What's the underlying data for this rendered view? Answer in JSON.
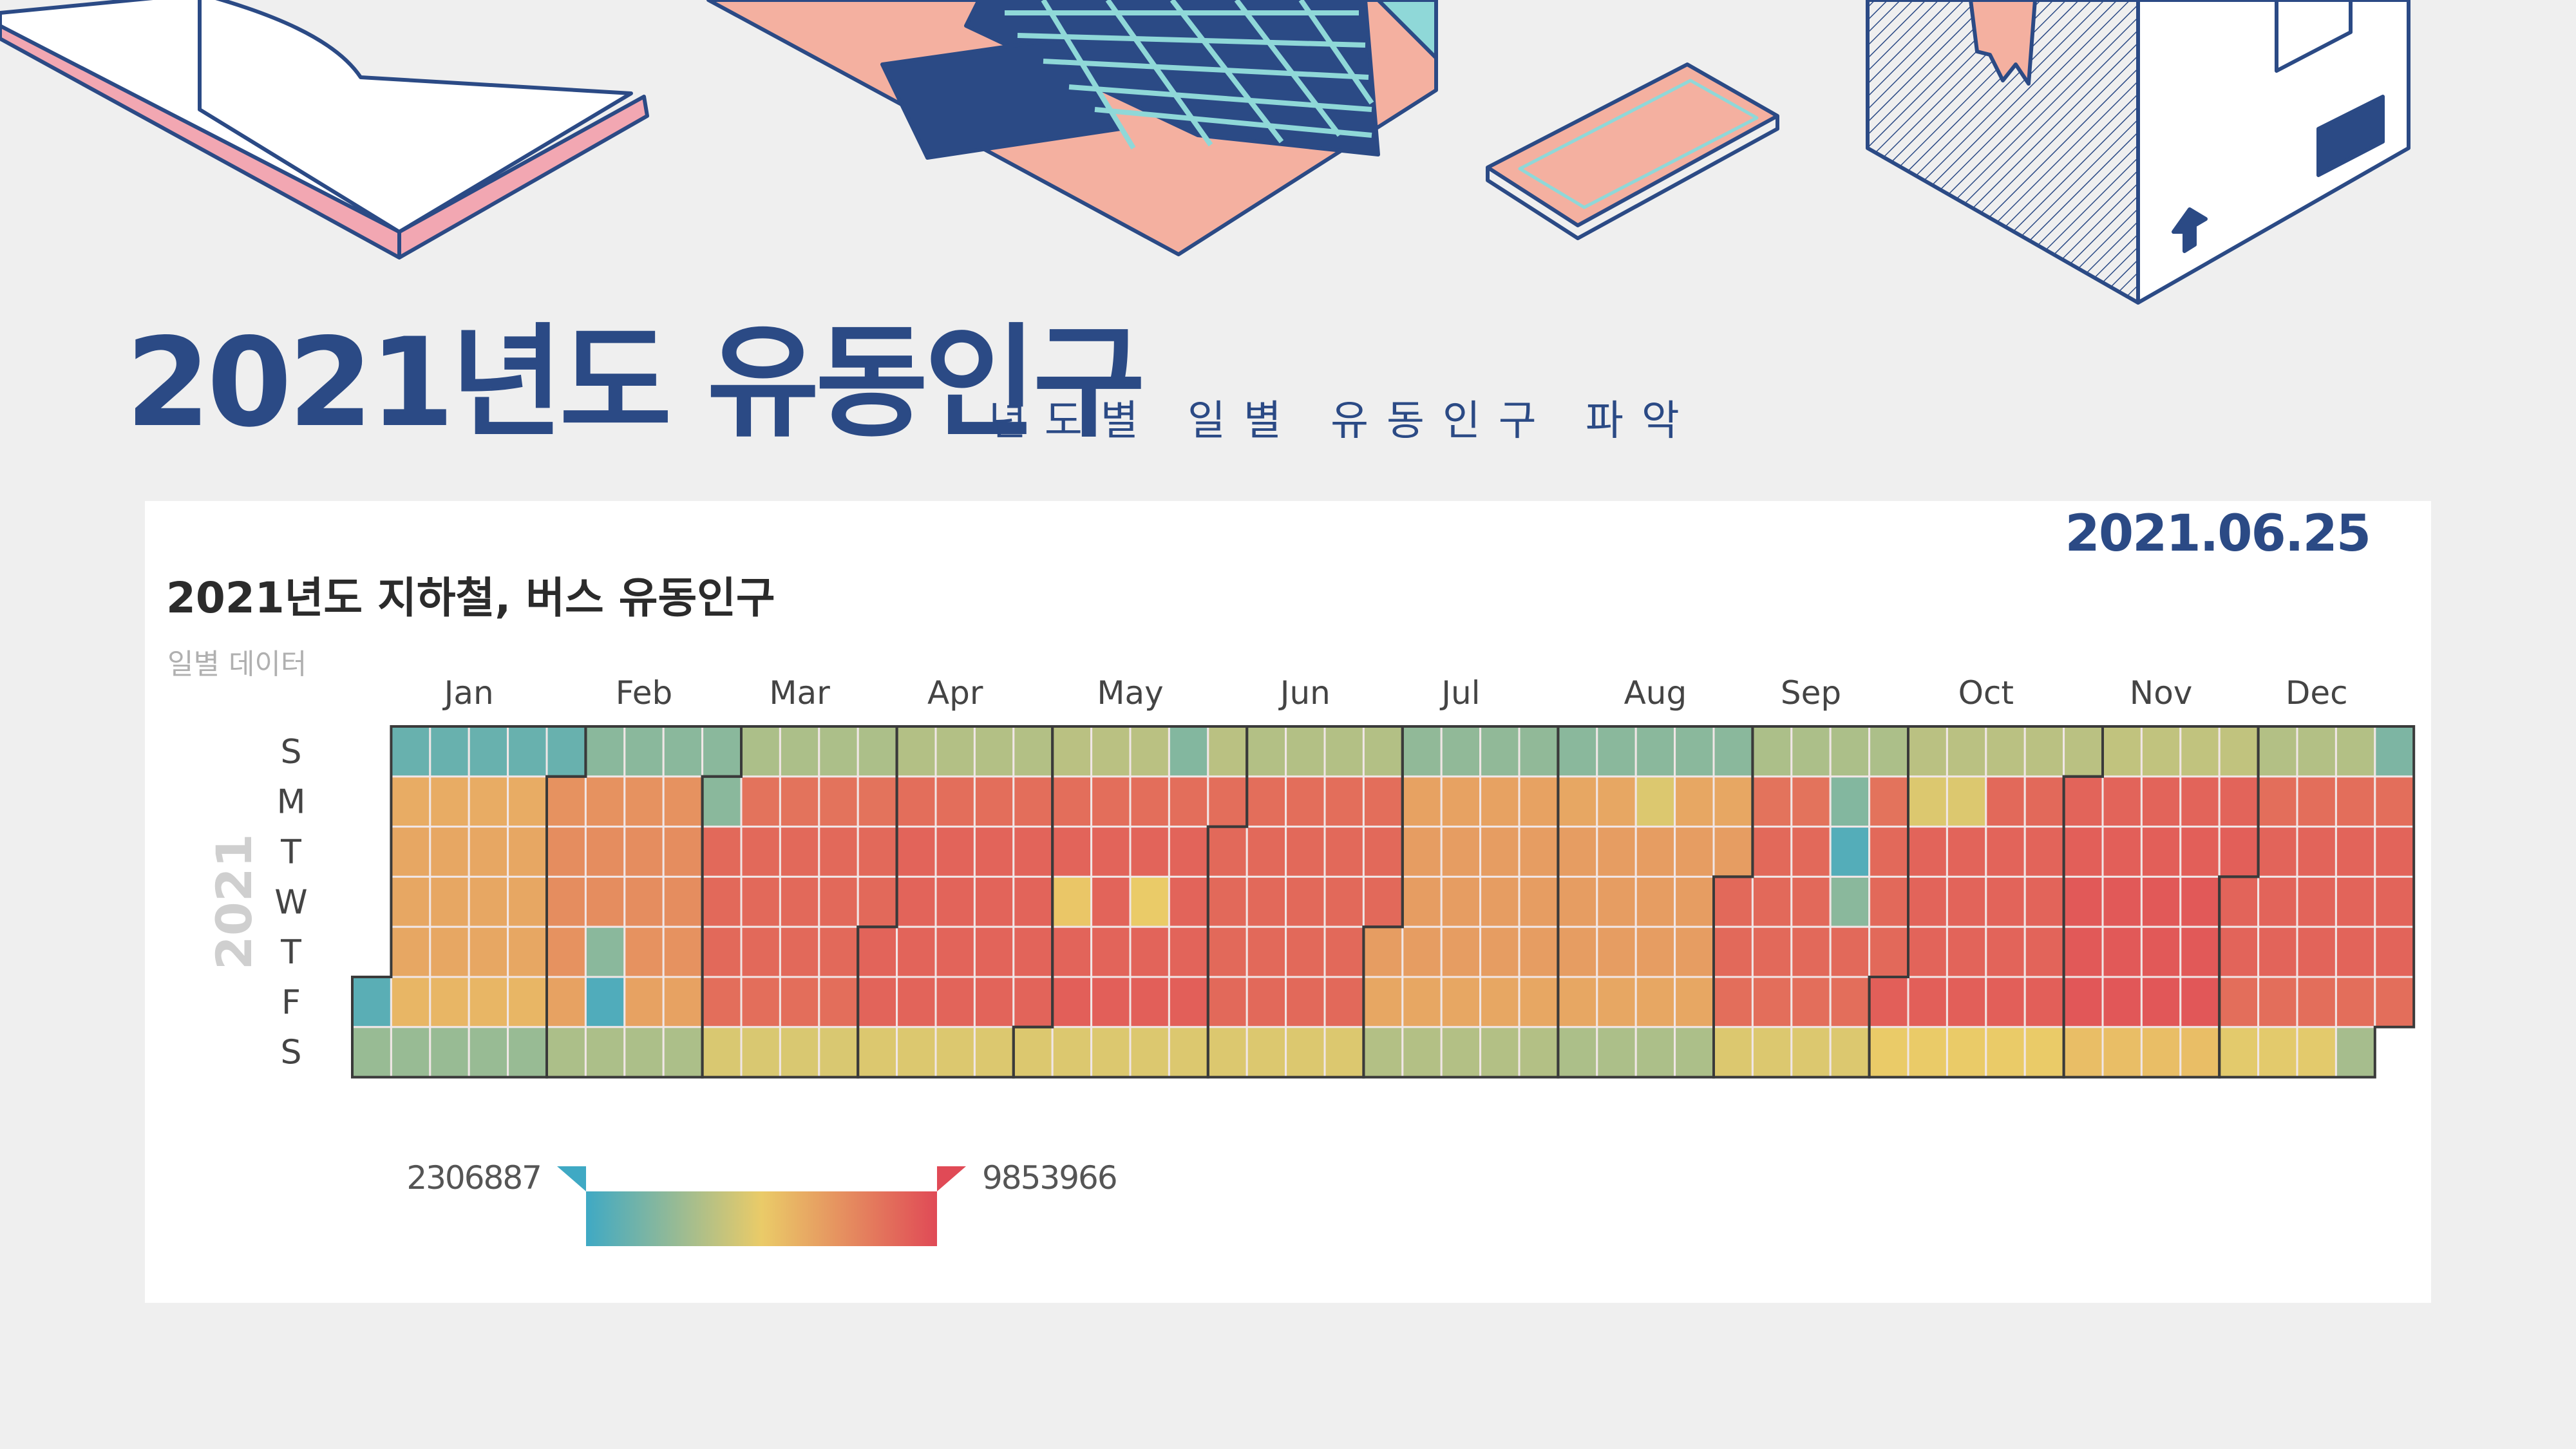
{
  "header": {
    "title": "2021년도 유동인구",
    "subtitle": "년도별 일별 유동인구 파악"
  },
  "card": {
    "date": "2021.06.25"
  },
  "decor_icons": [
    "open-book-icon",
    "laptop-icon",
    "smartphone-icon",
    "cardboard-box-icon"
  ],
  "colors": {
    "brand": "#2b4a85",
    "scale_low": "#3fa9c4",
    "scale_mid": "#eacb68",
    "scale_high": "#e04a56"
  },
  "chart_data": {
    "type": "heatmap",
    "title": "2021년도 지하철, 버스 유동인구",
    "subtitle": "일별 데이터",
    "year": "2021",
    "first_weekday_index": 5,
    "weekday_labels": [
      "S",
      "M",
      "T",
      "W",
      "T",
      "F",
      "S"
    ],
    "month_labels": [
      "Jan",
      "Feb",
      "Mar",
      "Apr",
      "May",
      "Jun",
      "Jul",
      "Aug",
      "Sep",
      "Oct",
      "Nov",
      "Dec"
    ],
    "month_lengths": [
      31,
      28,
      31,
      30,
      31,
      30,
      31,
      31,
      30,
      31,
      30,
      31
    ],
    "value_min": 2306887,
    "value_max": 9853966,
    "legend": {
      "min_label": "2306887",
      "max_label": "9853966",
      "placement": "bottom-left"
    },
    "month_weekday_levels": [
      [
        0.12,
        0.62,
        0.64,
        0.64,
        0.64,
        0.58,
        0.26
      ],
      [
        0.22,
        0.72,
        0.74,
        0.74,
        0.72,
        0.66,
        0.32
      ],
      [
        0.32,
        0.84,
        0.88,
        0.88,
        0.88,
        0.86,
        0.45
      ],
      [
        0.34,
        0.86,
        0.9,
        0.9,
        0.9,
        0.9,
        0.46
      ],
      [
        0.36,
        0.86,
        0.9,
        0.9,
        0.9,
        0.92,
        0.46
      ],
      [
        0.34,
        0.86,
        0.88,
        0.88,
        0.88,
        0.88,
        0.46
      ],
      [
        0.24,
        0.66,
        0.68,
        0.68,
        0.68,
        0.64,
        0.34
      ],
      [
        0.22,
        0.64,
        0.68,
        0.68,
        0.68,
        0.64,
        0.32
      ],
      [
        0.32,
        0.84,
        0.88,
        0.88,
        0.88,
        0.86,
        0.46
      ],
      [
        0.36,
        0.88,
        0.9,
        0.9,
        0.9,
        0.92,
        0.5
      ],
      [
        0.38,
        0.9,
        0.92,
        0.94,
        0.94,
        0.95,
        0.55
      ],
      [
        0.34,
        0.86,
        0.9,
        0.9,
        0.9,
        0.86,
        0.48
      ]
    ],
    "low_days": [
      {
        "date": "2021-01-01",
        "level": 0.08
      },
      {
        "date": "2021-02-11",
        "level": 0.22
      },
      {
        "date": "2021-02-12",
        "level": 0.05
      },
      {
        "date": "2021-03-01",
        "level": 0.22
      },
      {
        "date": "2021-05-05",
        "level": 0.52
      },
      {
        "date": "2021-05-19",
        "level": 0.5
      },
      {
        "date": "2021-05-23",
        "level": 0.2
      },
      {
        "date": "2021-08-16",
        "level": 0.46
      },
      {
        "date": "2021-09-20",
        "level": 0.2
      },
      {
        "date": "2021-09-21",
        "level": 0.06
      },
      {
        "date": "2021-09-22",
        "level": 0.22
      },
      {
        "date": "2021-10-04",
        "level": 0.46
      },
      {
        "date": "2021-10-11",
        "level": 0.46
      },
      {
        "date": "2021-12-25",
        "level": 0.3
      },
      {
        "date": "2021-12-26",
        "level": 0.18
      }
    ]
  }
}
